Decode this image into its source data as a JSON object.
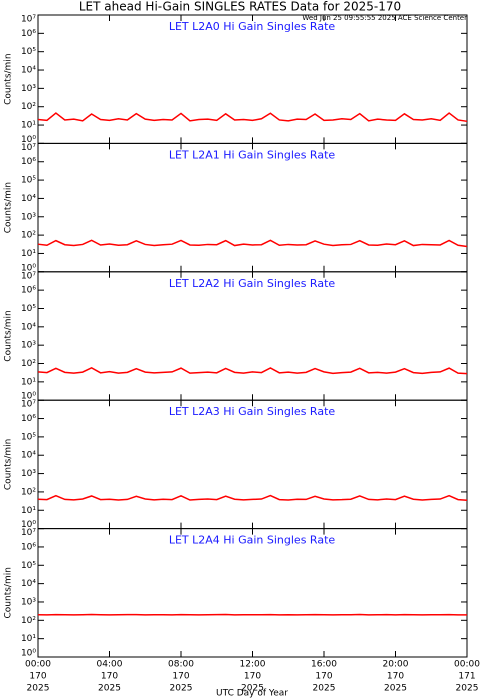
{
  "title": "LET ahead Hi-Gain SINGLES RATES Data for 2025-170",
  "timestamp": "Wed Jun 25 09:55:55 2025 ACE Science Center",
  "x_axis": {
    "xlabel": "UTC Day of Year",
    "xlim": [
      0,
      24
    ],
    "xticks": [
      {
        "value": 0,
        "label": "00:00"
      },
      {
        "value": 4,
        "label": "04:00"
      },
      {
        "value": 8,
        "label": "08:00"
      },
      {
        "value": 12,
        "label": "12:00"
      },
      {
        "value": 16,
        "label": "16:00"
      },
      {
        "value": 20,
        "label": "20:00"
      },
      {
        "value": 24,
        "label": "00:00"
      }
    ],
    "xtick_days": [
      "170",
      "170",
      "170",
      "170",
      "170",
      "170",
      "171"
    ],
    "xtick_year": "2025",
    "x": [
      0,
      0.5,
      1,
      1.5,
      2,
      2.5,
      3,
      3.5,
      4,
      4.5,
      5,
      5.5,
      6,
      6.5,
      7,
      7.5,
      8,
      8.5,
      9,
      9.5,
      10,
      10.5,
      11,
      11.5,
      12,
      12.5,
      13,
      13.5,
      14,
      14.5,
      15,
      15.5,
      16,
      16.5,
      17,
      17.5,
      18,
      18.5,
      19,
      19.5,
      20,
      20.5,
      21,
      21.5,
      22,
      22.5,
      23,
      23.5,
      24
    ]
  },
  "chart_data": [
    {
      "type": "line",
      "title": "LET L2A0 Hi Gain Singles Rate",
      "ylabel": "Counts/min",
      "log_scale": true,
      "color": "#ff0000",
      "ylim": [
        1,
        10000000
      ],
      "yticks": [
        {
          "value": 1,
          "label": "10⁰"
        },
        {
          "value": 10,
          "label": "10¹"
        },
        {
          "value": 100,
          "label": "10²"
        },
        {
          "value": 1000,
          "label": "10³"
        },
        {
          "value": 10000,
          "label": "10⁴"
        },
        {
          "value": 100000,
          "label": "10⁵"
        },
        {
          "value": 1000000,
          "label": "10⁶"
        },
        {
          "value": 10000000,
          "label": "10⁷"
        }
      ],
      "values": [
        20,
        18,
        45,
        19,
        21,
        17,
        40,
        20,
        18,
        22,
        19,
        42,
        21,
        18,
        20,
        19,
        43,
        17,
        20,
        21,
        18,
        41,
        19,
        20,
        18,
        22,
        44,
        19,
        17,
        21,
        20,
        40,
        18,
        19,
        22,
        20,
        42,
        17,
        21,
        19,
        18,
        41,
        20,
        19,
        22,
        18,
        45,
        19,
        16
      ]
    },
    {
      "type": "line",
      "title": "LET L2A1 Hi Gain Singles Rate",
      "ylabel": "Counts/min",
      "log_scale": true,
      "color": "#ff0000",
      "ylim": [
        1,
        10000000
      ],
      "yticks": [
        {
          "value": 1,
          "label": "10⁰"
        },
        {
          "value": 10,
          "label": "10¹"
        },
        {
          "value": 100,
          "label": "10²"
        },
        {
          "value": 1000,
          "label": "10³"
        },
        {
          "value": 10000,
          "label": "10⁴"
        },
        {
          "value": 100000,
          "label": "10⁵"
        },
        {
          "value": 1000000,
          "label": "10⁶"
        },
        {
          "value": 10000000,
          "label": "10⁷"
        }
      ],
      "values": [
        32,
        28,
        50,
        30,
        27,
        31,
        52,
        29,
        33,
        28,
        30,
        49,
        31,
        27,
        30,
        32,
        51,
        29,
        28,
        31,
        30,
        50,
        27,
        32,
        29,
        30,
        52,
        28,
        31,
        29,
        30,
        48,
        32,
        27,
        30,
        31,
        50,
        29,
        28,
        33,
        30,
        49,
        27,
        31,
        30,
        29,
        51,
        28,
        24
      ]
    },
    {
      "type": "line",
      "title": "LET L2A2 Hi Gain Singles Rate",
      "ylabel": "Counts/min",
      "log_scale": true,
      "color": "#ff0000",
      "ylim": [
        1,
        10000000
      ],
      "yticks": [
        {
          "value": 1,
          "label": "10⁰"
        },
        {
          "value": 10,
          "label": "10¹"
        },
        {
          "value": 100,
          "label": "10²"
        },
        {
          "value": 1000,
          "label": "10³"
        },
        {
          "value": 10000,
          "label": "10⁴"
        },
        {
          "value": 100000,
          "label": "10⁵"
        },
        {
          "value": 1000000,
          "label": "10⁶"
        },
        {
          "value": 10000000,
          "label": "10⁷"
        }
      ],
      "values": [
        35,
        32,
        55,
        33,
        30,
        34,
        58,
        31,
        36,
        30,
        33,
        52,
        34,
        31,
        33,
        35,
        56,
        30,
        32,
        34,
        31,
        54,
        33,
        30,
        35,
        32,
        57,
        31,
        34,
        30,
        33,
        53,
        35,
        29,
        32,
        34,
        55,
        31,
        33,
        30,
        34,
        52,
        32,
        29,
        33,
        35,
        56,
        30,
        28
      ]
    },
    {
      "type": "line",
      "title": "LET L2A3 Hi Gain Singles Rate",
      "ylabel": "Counts/min",
      "log_scale": true,
      "color": "#ff0000",
      "ylim": [
        1,
        10000000
      ],
      "yticks": [
        {
          "value": 1,
          "label": "10⁰"
        },
        {
          "value": 10,
          "label": "10¹"
        },
        {
          "value": 100,
          "label": "10²"
        },
        {
          "value": 1000,
          "label": "10³"
        },
        {
          "value": 10000,
          "label": "10⁴"
        },
        {
          "value": 100000,
          "label": "10⁵"
        },
        {
          "value": 1000000,
          "label": "10⁶"
        },
        {
          "value": 10000000,
          "label": "10⁷"
        }
      ],
      "values": [
        40,
        38,
        62,
        39,
        37,
        41,
        60,
        38,
        40,
        36,
        39,
        58,
        41,
        37,
        40,
        38,
        61,
        36,
        39,
        41,
        38,
        59,
        40,
        37,
        39,
        41,
        63,
        38,
        36,
        40,
        39,
        58,
        41,
        37,
        38,
        40,
        60,
        39,
        37,
        41,
        38,
        59,
        40,
        36,
        39,
        41,
        62,
        38,
        35
      ]
    },
    {
      "type": "line",
      "title": "LET L2A4 Hi Gain Singles Rate",
      "ylabel": "Counts/min",
      "log_scale": true,
      "color": "#ff0000",
      "ylim": [
        1,
        10000000
      ],
      "yticks": [
        {
          "value": 1,
          "label": "10⁰"
        },
        {
          "value": 10,
          "label": "10¹"
        },
        {
          "value": 100,
          "label": "10²"
        },
        {
          "value": 1000,
          "label": "10³"
        },
        {
          "value": 10000,
          "label": "10⁴"
        },
        {
          "value": 100000,
          "label": "10⁵"
        },
        {
          "value": 1000000,
          "label": "10⁶"
        },
        {
          "value": 10000000,
          "label": "10⁷"
        }
      ],
      "values": [
        200,
        198,
        205,
        201,
        199,
        202,
        206,
        200,
        197,
        201,
        203,
        205,
        199,
        200,
        202,
        198,
        204,
        201,
        199,
        200,
        203,
        206,
        198,
        201,
        200,
        202,
        205,
        199,
        201,
        198,
        200,
        204,
        202,
        199,
        201,
        200,
        206,
        198,
        200,
        203,
        199,
        205,
        201,
        198,
        200,
        202,
        204,
        199,
        197
      ]
    }
  ]
}
